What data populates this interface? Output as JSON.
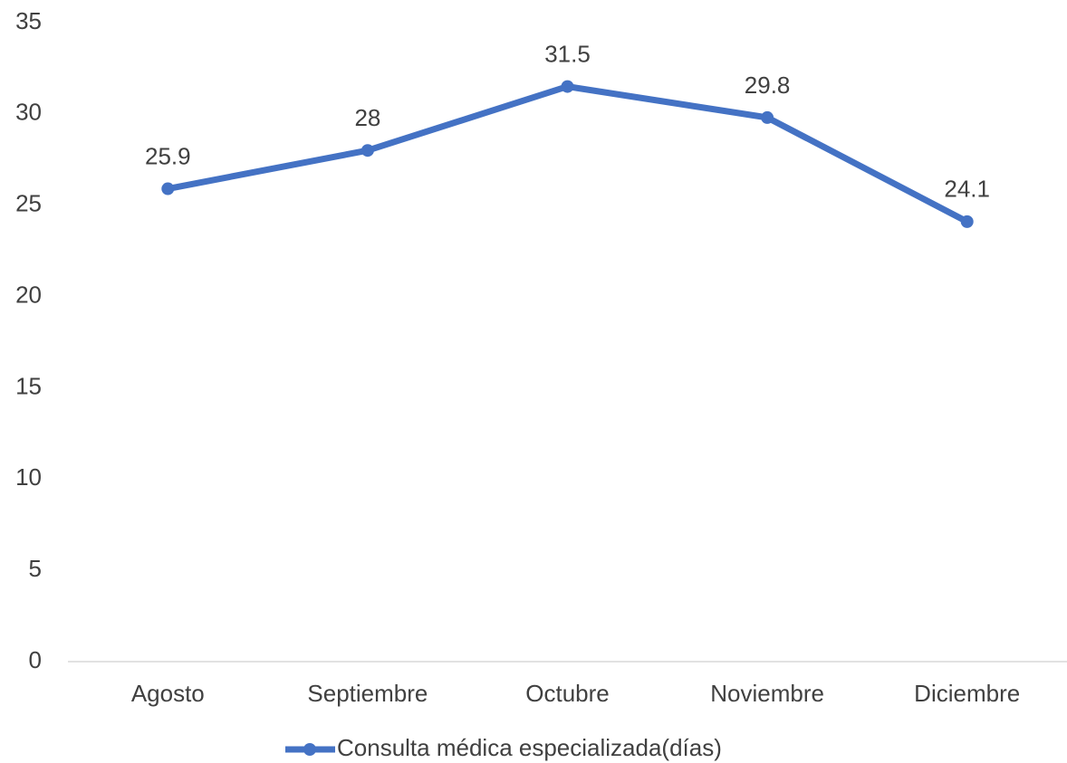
{
  "chart_data": {
    "type": "line",
    "categories": [
      "Agosto",
      "Septiembre",
      "Octubre",
      "Noviembre",
      "Diciembre"
    ],
    "series": [
      {
        "name": "Consulta médica especializada(días)",
        "color": "#4472c4",
        "values": [
          25.9,
          28,
          31.5,
          29.8,
          24.1
        ]
      }
    ],
    "ylim": [
      0,
      35
    ],
    "yticks": [
      0,
      5,
      10,
      15,
      20,
      25,
      30,
      35
    ],
    "grid": false,
    "legend": "bottom"
  }
}
